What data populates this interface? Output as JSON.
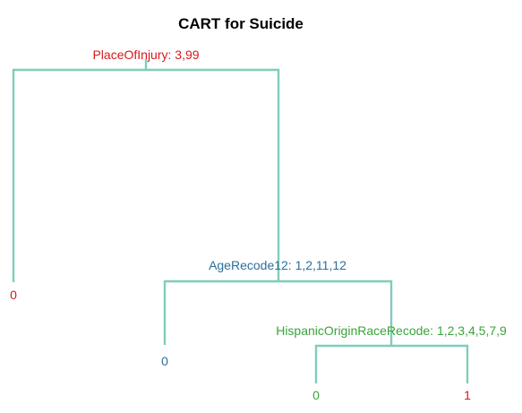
{
  "title": "CART for Suicide",
  "colors": {
    "edge": "#7fcdbb",
    "red": "#d7191c",
    "blue": "#2c6e9b",
    "green": "#3aa33a"
  },
  "tree": {
    "root_split": {
      "label": "PlaceOfInjury: 3,99",
      "color": "#d7191c"
    },
    "age_split": {
      "label": "AgeRecode12: 1,2,11,12",
      "color": "#2c6e9b"
    },
    "race_split": {
      "label": "HispanicOriginRaceRecode: 1,2,3,4,5,7,9",
      "color": "#3aa33a"
    },
    "leaves": [
      {
        "label": "0",
        "color": "#d7191c"
      },
      {
        "label": "0",
        "color": "#2c6e9b"
      },
      {
        "label": "0",
        "color": "#3aa33a"
      },
      {
        "label": "1",
        "color": "#d7191c"
      }
    ]
  }
}
